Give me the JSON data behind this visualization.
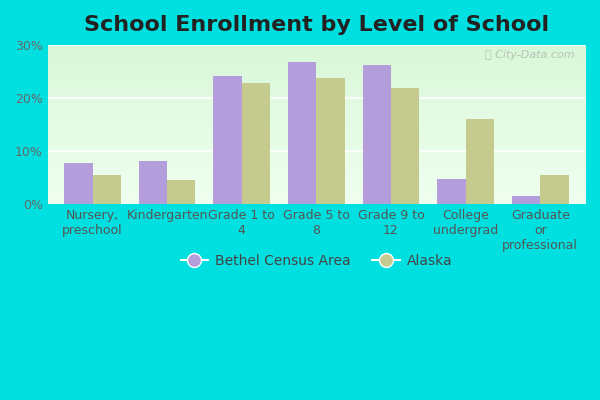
{
  "title": "School Enrollment by Level of School",
  "categories": [
    "Nursery,\npreschool",
    "Kindergarten",
    "Grade 1 to\n4",
    "Grade 5 to\n8",
    "Grade 9 to\n12",
    "College\nundergrad",
    "Graduate\nor\nprofessional"
  ],
  "bethel_values": [
    7.8,
    8.1,
    24.2,
    26.8,
    26.2,
    4.8,
    1.5
  ],
  "alaska_values": [
    5.5,
    4.5,
    22.8,
    23.8,
    21.8,
    16.0,
    5.5
  ],
  "bethel_color": "#b39ddb",
  "alaska_color": "#c5ca8e",
  "fig_facecolor": "#00e0e0",
  "plot_facecolor": "#f0faf0",
  "ytick_labels": [
    "0%",
    "10%",
    "20%",
    "30%"
  ],
  "ytick_values": [
    0,
    10,
    20,
    30
  ],
  "ylim": [
    0,
    30
  ],
  "legend_bethel": "Bethel Census Area",
  "legend_alaska": "Alaska",
  "title_fontsize": 16,
  "tick_fontsize": 9,
  "legend_fontsize": 10,
  "watermark_text": "City-Data.com",
  "bar_width": 0.38
}
